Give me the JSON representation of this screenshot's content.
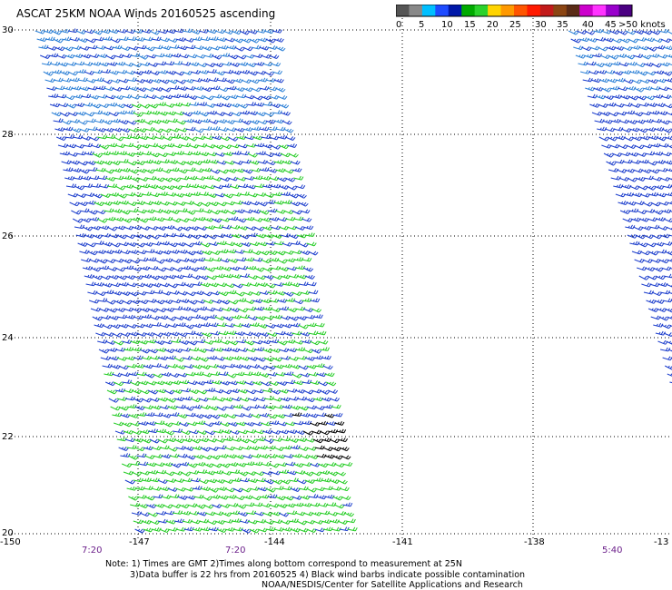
{
  "title": "ASCAT 25KM NOAA Winds 20160525 ascending",
  "colorbar": {
    "colors": [
      "#555555",
      "#888888",
      "#00bfff",
      "#1e4bff",
      "#0018a8",
      "#00aa00",
      "#2bd22b",
      "#ffd400",
      "#ff9900",
      "#ff5500",
      "#ff1a00",
      "#c21a1a",
      "#8b4513",
      "#5a2b16",
      "#cc00cc",
      "#ff33ff",
      "#9900cc",
      "#4b0082"
    ],
    "ticks": [
      "0",
      "5",
      "10",
      "15",
      "20",
      "25",
      "30",
      "35",
      "40",
      "45",
      ">50 knots"
    ]
  },
  "lat_labels": [
    "30",
    "28",
    "26",
    "24",
    "22",
    "20"
  ],
  "lon_labels": [
    "-150",
    "-147",
    "-144",
    "-141",
    "-138",
    "-13"
  ],
  "time_labels": [
    "7:20",
    "7:20",
    "5:40"
  ],
  "notes": {
    "line1": "Note: 1) Times are GMT 2)Times along bottom correspond to measurement at 25N",
    "line2": "3)Data buffer is 22 hrs from 20160525 4) Black wind barbs indicate possible contamination",
    "line3": "NOAA/NESDIS/Center for Satellite Applications and Research"
  },
  "barb_colors": {
    "blue": "#1a3ccc",
    "lightblue": "#2a7fd6",
    "green": "#22cc22",
    "black": "#000000"
  }
}
